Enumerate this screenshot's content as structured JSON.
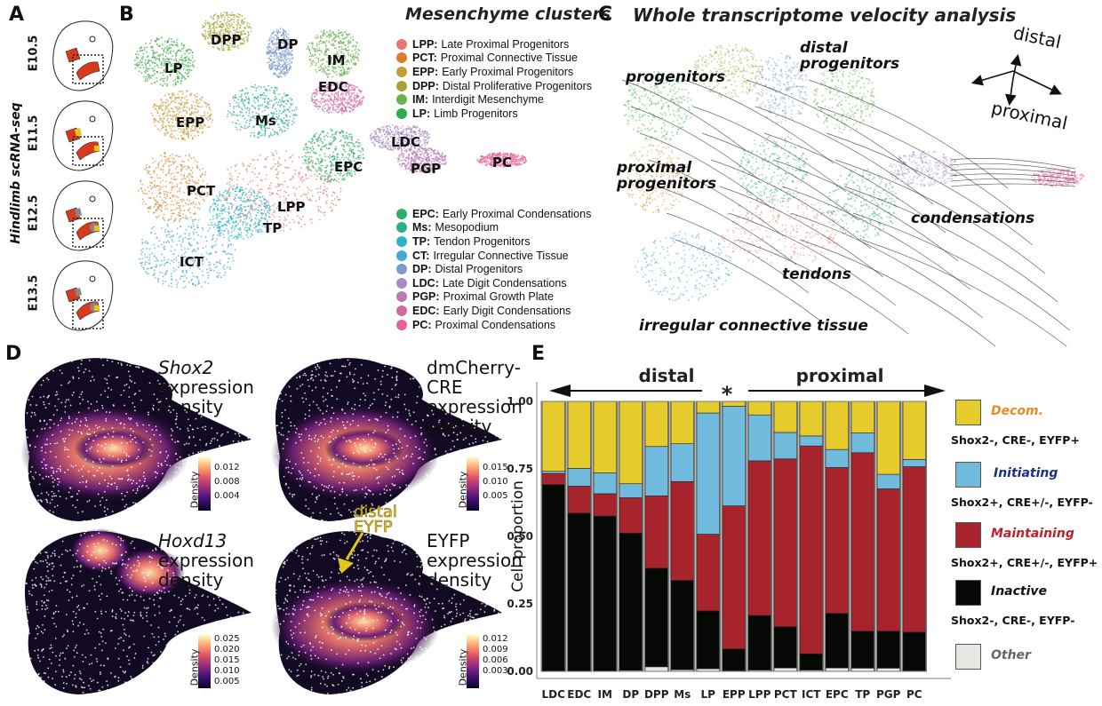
{
  "panel_a": {
    "letter": "A",
    "ylabel": "Hindlimb scRNA-seq",
    "stages": [
      "E10.5",
      "E11.5",
      "E12.5",
      "E13.5"
    ]
  },
  "panel_b": {
    "letter": "B",
    "title": "Mesenchyme clusters",
    "cluster_labels": [
      {
        "id": "DPP",
        "color": "#a6a43a"
      },
      {
        "id": "LP",
        "color": "#3fae4b"
      },
      {
        "id": "DP",
        "color": "#7c9bc9"
      },
      {
        "id": "IM",
        "color": "#6ab04c"
      },
      {
        "id": "EDC",
        "color": "#cf6aa2"
      },
      {
        "id": "EPP",
        "color": "#c99a3a"
      },
      {
        "id": "Ms",
        "color": "#2fae8c"
      },
      {
        "id": "LDC",
        "color": "#a98ac2"
      },
      {
        "id": "EPC",
        "color": "#2fae6a"
      },
      {
        "id": "PGP",
        "color": "#b97bb4"
      },
      {
        "id": "PC",
        "color": "#e86a9e"
      },
      {
        "id": "PCT",
        "color": "#d88a3c"
      },
      {
        "id": "LPP",
        "color": "#e87870"
      },
      {
        "id": "TP",
        "color": "#27b5c8"
      },
      {
        "id": "ICT",
        "color": "#4aa6d6"
      }
    ],
    "legend_top": [
      {
        "abbr": "LPP:",
        "name": "Late Proximal Progenitors",
        "color": "#e87870"
      },
      {
        "abbr": "PCT:",
        "name": "Proximal Connective Tissue",
        "color": "#e07b2e"
      },
      {
        "abbr": "EPP:",
        "name": "Early Proximal Progenitors",
        "color": "#c99a3a"
      },
      {
        "abbr": "DPP:",
        "name": "Distal Proliferative Progenitors",
        "color": "#a6a43a"
      },
      {
        "abbr": "IM:",
        "name": "Interdigit Mesenchyme",
        "color": "#6ab04c"
      },
      {
        "abbr": "LP:",
        "name": "Limb Progenitors",
        "color": "#2fae4b"
      }
    ],
    "legend_bottom": [
      {
        "abbr": "EPC:",
        "name": "Early Proximal Condensations",
        "color": "#2fae6a"
      },
      {
        "abbr": "Ms:",
        "name": "Mesopodium",
        "color": "#2fae8c"
      },
      {
        "abbr": "TP:",
        "name": "Tendon Progenitors",
        "color": "#27b5c8"
      },
      {
        "abbr": "CT:",
        "name": "Irregular Connective Tissue",
        "color": "#4aa6d6"
      },
      {
        "abbr": "DP:",
        "name": "Distal Progenitors",
        "color": "#7c9bc9"
      },
      {
        "abbr": "LDC:",
        "name": "Late Digit Condensations",
        "color": "#a98ac2"
      },
      {
        "abbr": "PGP:",
        "name": "Proximal Growth Plate",
        "color": "#b97bb4"
      },
      {
        "abbr": "EDC:",
        "name": "Early Digit Condensations",
        "color": "#cf6aa2"
      },
      {
        "abbr": "PC:",
        "name": "Proximal Condensations",
        "color": "#e8609a"
      }
    ]
  },
  "panel_c": {
    "letter": "C",
    "title": "Whole transcriptome velocity analysis",
    "labels": {
      "progenitors": "progenitors",
      "distal_progenitors_1": "distal",
      "distal_progenitors_2": "progenitors",
      "proximal_progenitors_1": "proximal",
      "proximal_progenitors_2": "progenitors",
      "condensations": "condensations",
      "tendons": "tendons",
      "ict": "irregular connective tissue"
    },
    "compass": {
      "distal": "distal",
      "proximal": "proximal"
    }
  },
  "panel_d": {
    "letter": "D",
    "plots": [
      {
        "gene": "Shox2",
        "gene_italic": true,
        "line2": "expression",
        "line3": "density",
        "cbar_label": "Density",
        "ticks": [
          "0.012",
          "0.008",
          "0.004"
        ],
        "hotspot": "proximal"
      },
      {
        "gene": "dmCherry-CRE",
        "gene_italic": false,
        "line2": "expression",
        "line3": "density",
        "cbar_label": "Density",
        "ticks": [
          "0.015",
          "0.010",
          "0.005"
        ],
        "hotspot": "proximal"
      },
      {
        "gene": "Hoxd13",
        "gene_italic": true,
        "line2": "expression",
        "line3": "density",
        "cbar_label": "Density",
        "ticks": [
          "0.025",
          "0.020",
          "0.015",
          "0.010",
          "0.005"
        ],
        "hotspot": "distal"
      },
      {
        "gene": "EYFP",
        "gene_italic": false,
        "line2": "expression",
        "line3": "density",
        "cbar_label": "Density",
        "ticks": [
          "0.012",
          "0.009",
          "0.006",
          "0.003"
        ],
        "hotspot": "proximal"
      }
    ],
    "annotation": {
      "line1": "distal",
      "line2": "EYFP",
      "color": "#e5c61a"
    }
  },
  "panel_e": {
    "letter": "E",
    "distal_label": "distal",
    "proximal_label": "proximal",
    "asterisk": "*"
  },
  "chart_data": {
    "type": "bar",
    "stacked": true,
    "title": "",
    "xlabel": "",
    "ylabel": "Cell proportion",
    "ylim": [
      0,
      1
    ],
    "yticks": [
      "0.00",
      "0.25",
      "0.50",
      "0.75",
      "1.00"
    ],
    "categories": [
      "LDC",
      "EDC",
      "IM",
      "DP",
      "DPP",
      "Ms",
      "LP",
      "EPP",
      "LPP",
      "PCT",
      "ICT",
      "EPC",
      "TP",
      "PGP",
      "PC"
    ],
    "series": [
      {
        "name": "Other",
        "subtitle": "",
        "color": "#e6e6e2",
        "title_color": "#666666",
        "values": [
          0.0,
          0.0,
          0.002,
          0.004,
          0.017,
          0.006,
          0.01,
          0.003,
          0.005,
          0.013,
          0.005,
          0.013,
          0.012,
          0.012,
          0.003
        ]
      },
      {
        "name": "Inactive",
        "subtitle": "Shox2-, CRE-, EYFP-",
        "color": "#060806",
        "title_color": "#111111",
        "values": [
          0.692,
          0.586,
          0.573,
          0.508,
          0.365,
          0.331,
          0.214,
          0.08,
          0.202,
          0.152,
          0.06,
          0.202,
          0.137,
          0.137,
          0.142
        ]
      },
      {
        "name": "Maintaining",
        "subtitle": "Shox2+, CRE+/-, EYFP+",
        "color": "#a8242c",
        "title_color": "#c0202a",
        "values": [
          0.041,
          0.1,
          0.083,
          0.131,
          0.268,
          0.366,
          0.284,
          0.53,
          0.573,
          0.622,
          0.77,
          0.54,
          0.661,
          0.527,
          0.613
        ]
      },
      {
        "name": "Initiating",
        "subtitle": "Shox2+, CRE+/-, EYFP-",
        "color": "#6fbadd",
        "title_color": "#1c2e8a",
        "values": [
          0.008,
          0.066,
          0.077,
          0.052,
          0.183,
          0.14,
          0.449,
          0.369,
          0.17,
          0.098,
          0.037,
          0.067,
          0.073,
          0.054,
          0.027
        ]
      },
      {
        "name": "Decom.",
        "subtitle": "Shox2-, CRE-, EYFP+",
        "color": "#e6cb2c",
        "title_color": "#ef8a22",
        "values": [
          0.259,
          0.248,
          0.265,
          0.305,
          0.167,
          0.157,
          0.043,
          0.018,
          0.05,
          0.115,
          0.128,
          0.178,
          0.117,
          0.27,
          0.215
        ]
      }
    ],
    "legend": "right",
    "grid": false
  }
}
